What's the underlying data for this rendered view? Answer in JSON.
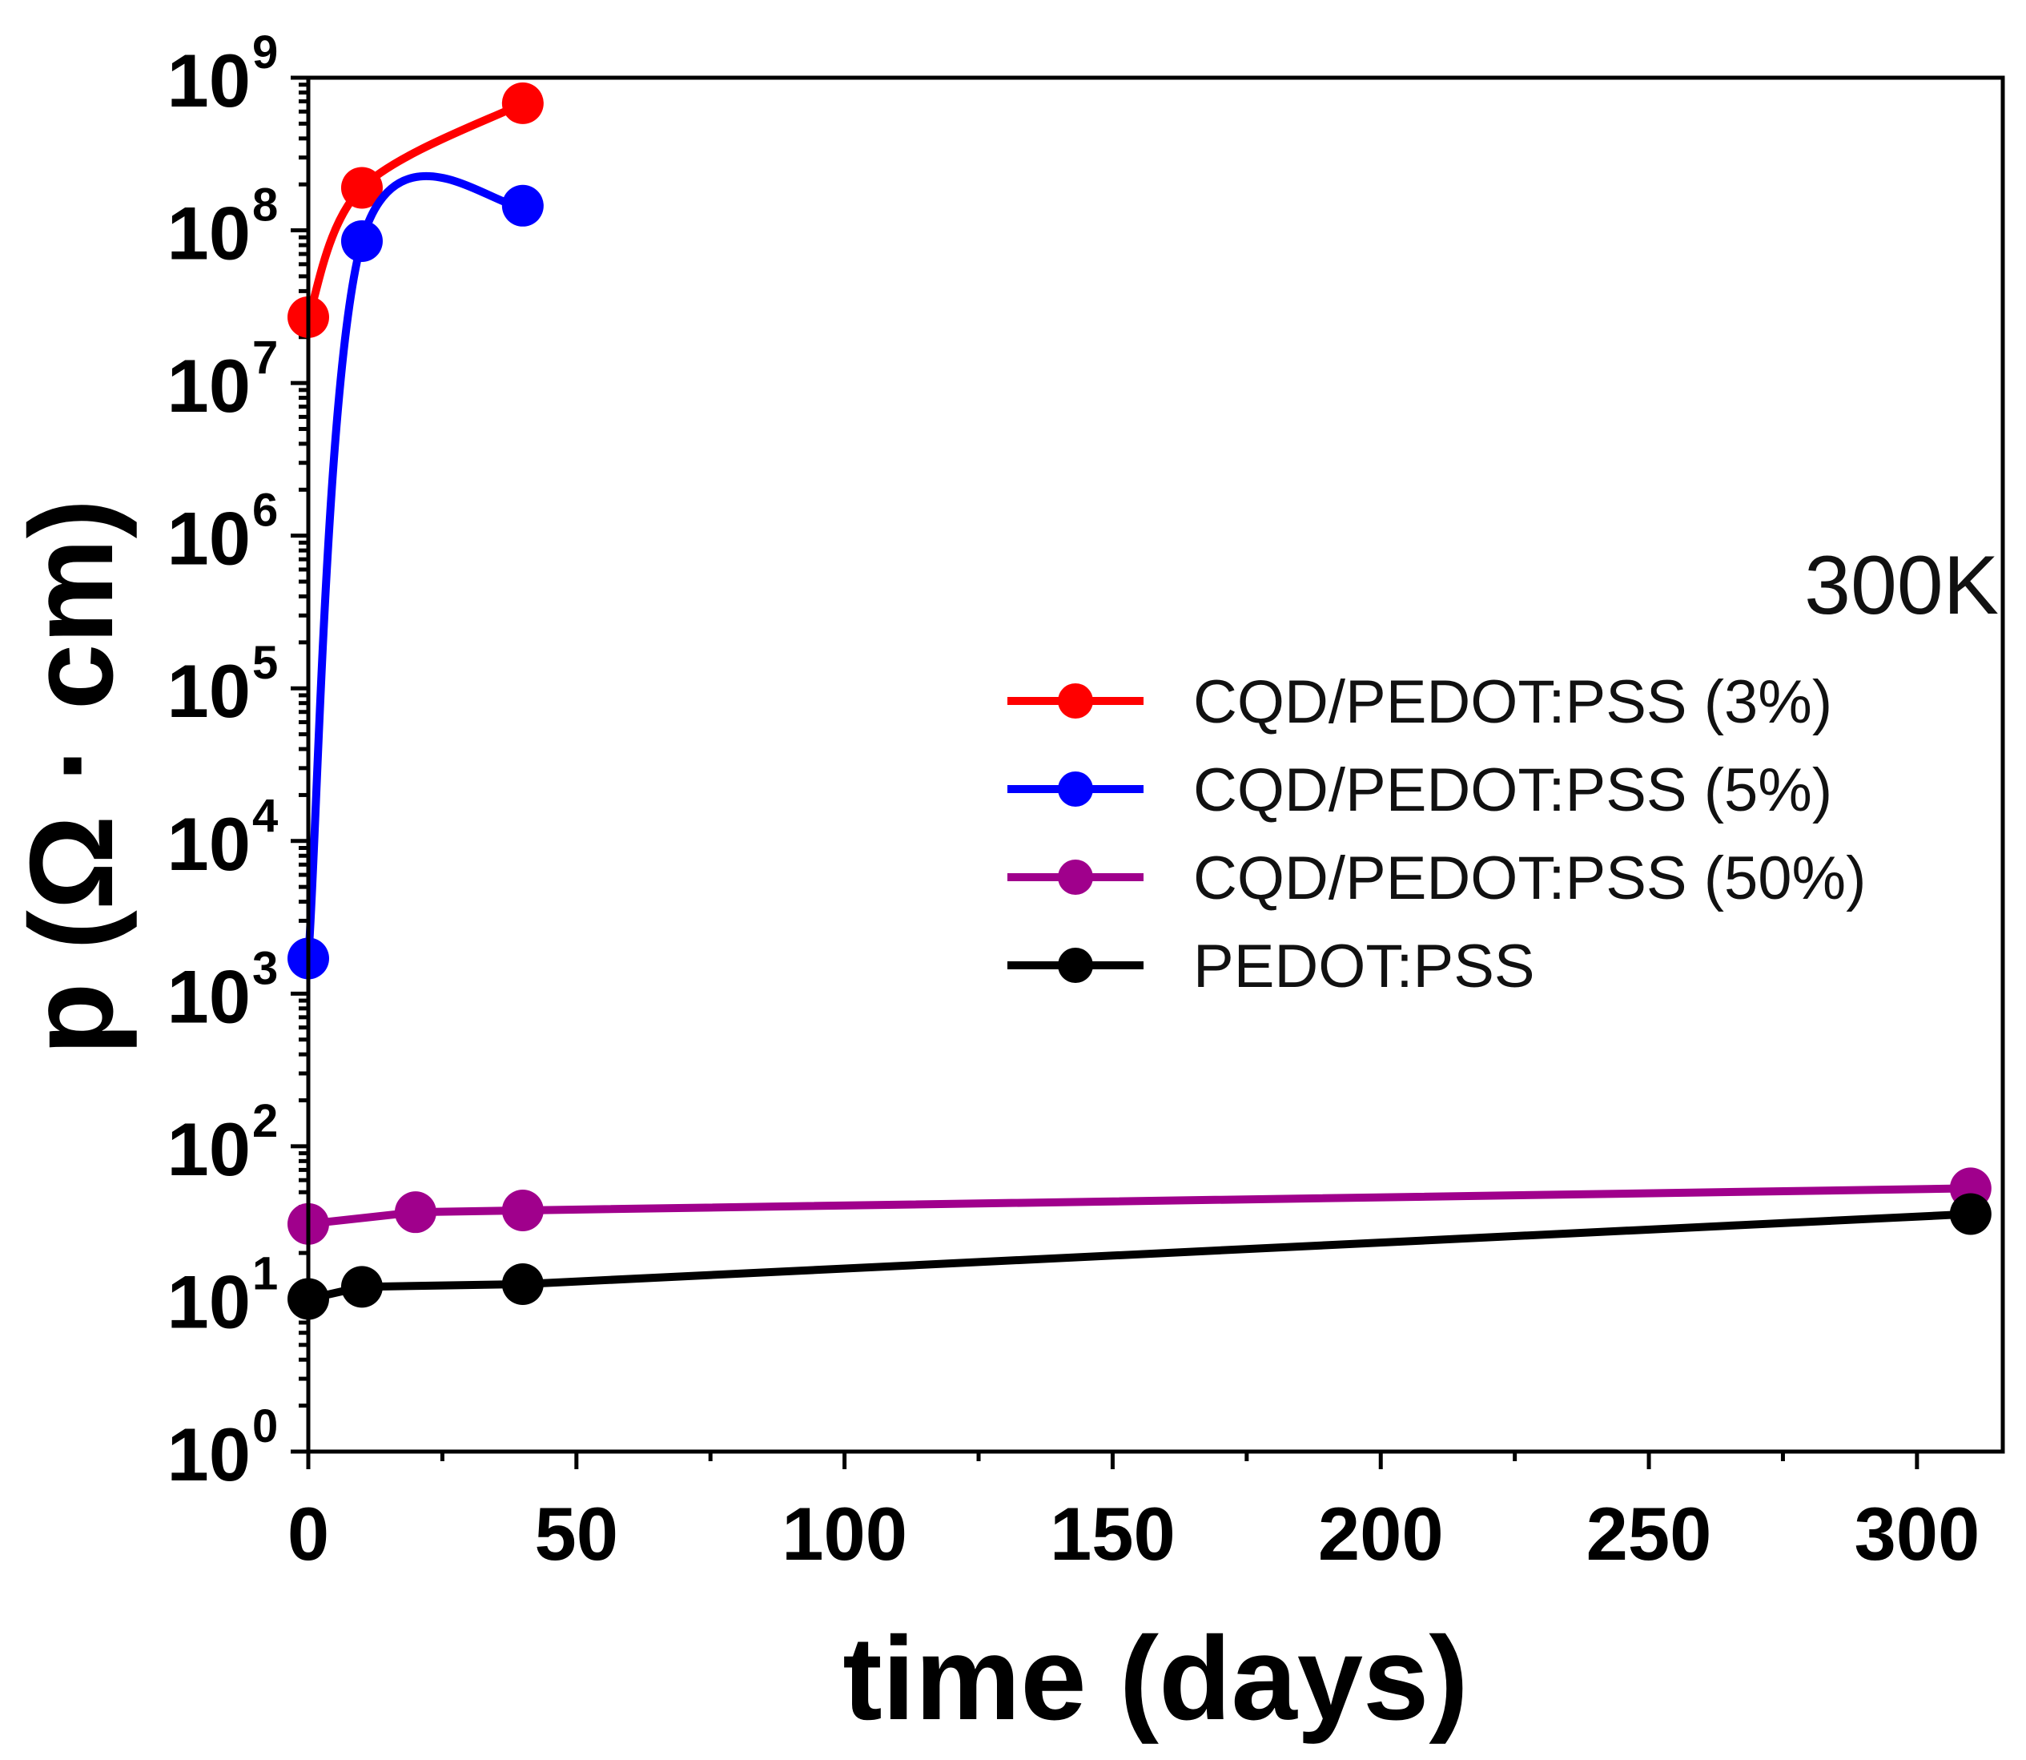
{
  "chart_data": {
    "type": "line",
    "title": "",
    "annotation": "300K",
    "xlabel": "time (days)",
    "ylabel": "p (Ω · cm)",
    "xlim": [
      0,
      316
    ],
    "ylim": [
      1,
      1000000000
    ],
    "yscale": "log",
    "xticks": [
      0,
      50,
      100,
      150,
      200,
      250,
      300
    ],
    "yticks": [
      {
        "base": "10",
        "exp": "0",
        "value": 1
      },
      {
        "base": "10",
        "exp": "1",
        "value": 10
      },
      {
        "base": "10",
        "exp": "2",
        "value": 100
      },
      {
        "base": "10",
        "exp": "3",
        "value": 1000
      },
      {
        "base": "10",
        "exp": "4",
        "value": 10000
      },
      {
        "base": "10",
        "exp": "5",
        "value": 100000
      },
      {
        "base": "10",
        "exp": "6",
        "value": 1000000
      },
      {
        "base": "10",
        "exp": "7",
        "value": 10000000
      },
      {
        "base": "10",
        "exp": "8",
        "value": 100000000
      },
      {
        "base": "10",
        "exp": "9",
        "value": 1000000000
      }
    ],
    "legend_position": "right",
    "series": [
      {
        "name": "CQD/PEDOT:PSS (3%)",
        "color": "#ff0000",
        "x": [
          0,
          10,
          40
        ],
        "y": [
          27000000,
          190000000,
          680000000
        ]
      },
      {
        "name": "CQD/PEDOT:PSS (5%)",
        "color": "#0000ff",
        "x": [
          0,
          10,
          40
        ],
        "y": [
          1700,
          85000000,
          145000000
        ]
      },
      {
        "name": "CQD/PEDOT:PSS (50%)",
        "color": "#a0008c",
        "x": [
          0,
          20,
          40,
          310
        ],
        "y": [
          31,
          37,
          38,
          53
        ]
      },
      {
        "name": "PEDOT:PSS",
        "color": "#000000",
        "x": [
          0,
          10,
          40,
          310
        ],
        "y": [
          10,
          12,
          12.5,
          36
        ]
      }
    ]
  }
}
